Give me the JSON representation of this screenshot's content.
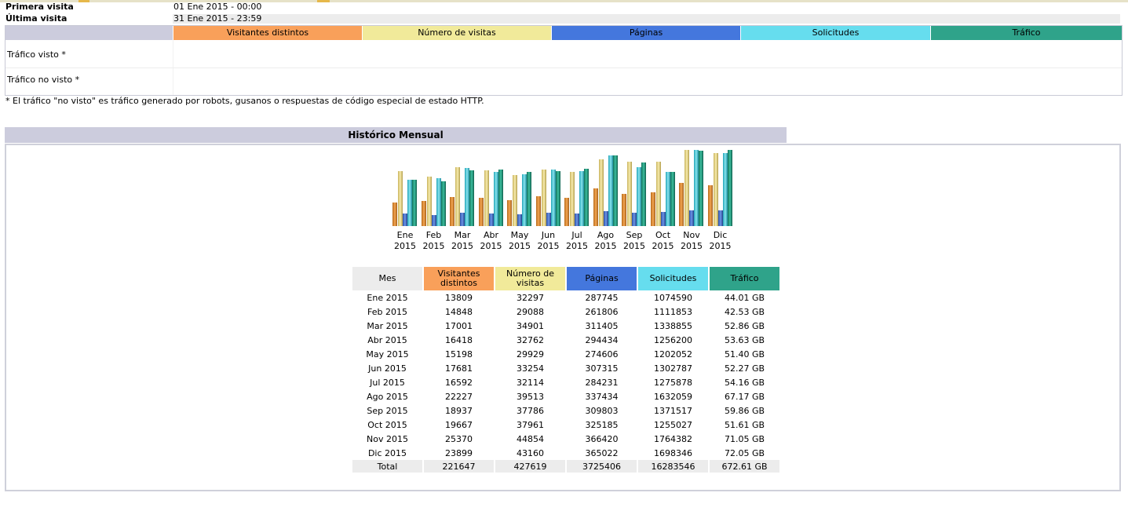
{
  "summary": {
    "first_visit_label": "Primera visita",
    "first_visit_value": "01 Ene 2015 - 00:00",
    "last_visit_label": "Última visita",
    "last_visit_value": "31 Ene 2015 - 23:59",
    "columns": [
      "Visitantes distintos",
      "Número de visitas",
      "Páginas",
      "Solicitudes",
      "Tráfico"
    ],
    "rows": [
      "Tráfico visto *",
      "Tráfico no visto *"
    ],
    "footnote": "* El tráfico \"no visto\" es tráfico generado por robots, gusanos o respuestas de código especial de estado HTTP."
  },
  "monthly": {
    "title": "Histórico Mensual",
    "headers": {
      "month": "Mes",
      "visitors": "Visitantes distintos",
      "visits": "Número de visitas",
      "pages": "Páginas",
      "hits": "Solicitudes",
      "traffic": "Tráfico"
    },
    "rows": [
      {
        "month": "Ene 2015",
        "visitors": "13809",
        "visits": "32297",
        "pages": "287745",
        "hits": "1074590",
        "traffic": "44.01 GB"
      },
      {
        "month": "Feb 2015",
        "visitors": "14848",
        "visits": "29088",
        "pages": "261806",
        "hits": "1111853",
        "traffic": "42.53 GB"
      },
      {
        "month": "Mar 2015",
        "visitors": "17001",
        "visits": "34901",
        "pages": "311405",
        "hits": "1338855",
        "traffic": "52.86 GB"
      },
      {
        "month": "Abr 2015",
        "visitors": "16418",
        "visits": "32762",
        "pages": "294434",
        "hits": "1256200",
        "traffic": "53.63 GB"
      },
      {
        "month": "May 2015",
        "visitors": "15198",
        "visits": "29929",
        "pages": "274606",
        "hits": "1202052",
        "traffic": "51.40 GB"
      },
      {
        "month": "Jun 2015",
        "visitors": "17681",
        "visits": "33254",
        "pages": "307315",
        "hits": "1302787",
        "traffic": "52.27 GB"
      },
      {
        "month": "Jul 2015",
        "visitors": "16592",
        "visits": "32114",
        "pages": "284231",
        "hits": "1275878",
        "traffic": "54.16 GB"
      },
      {
        "month": "Ago 2015",
        "visitors": "22227",
        "visits": "39513",
        "pages": "337434",
        "hits": "1632059",
        "traffic": "67.17 GB"
      },
      {
        "month": "Sep 2015",
        "visitors": "18937",
        "visits": "37786",
        "pages": "309803",
        "hits": "1371517",
        "traffic": "59.86 GB"
      },
      {
        "month": "Oct 2015",
        "visitors": "19667",
        "visits": "37961",
        "pages": "325185",
        "hits": "1255027",
        "traffic": "51.61 GB"
      },
      {
        "month": "Nov 2015",
        "visitors": "25370",
        "visits": "44854",
        "pages": "366420",
        "hits": "1764382",
        "traffic": "71.05 GB"
      },
      {
        "month": "Dic 2015",
        "visitors": "23899",
        "visits": "43160",
        "pages": "365022",
        "hits": "1698346",
        "traffic": "72.05 GB"
      }
    ],
    "total": {
      "month": "Total",
      "visitors": "221647",
      "visits": "427619",
      "pages": "3725406",
      "hits": "16283546",
      "traffic": "672.61 GB"
    }
  },
  "chart_data": {
    "type": "bar",
    "categories": [
      "Ene 2015",
      "Feb 2015",
      "Mar 2015",
      "Abr 2015",
      "May 2015",
      "Jun 2015",
      "Jul 2015",
      "Ago 2015",
      "Sep 2015",
      "Oct 2015",
      "Nov 2015",
      "Dic 2015"
    ],
    "category_lines": [
      [
        "Ene",
        "2015"
      ],
      [
        "Feb",
        "2015"
      ],
      [
        "Mar",
        "2015"
      ],
      [
        "Abr",
        "2015"
      ],
      [
        "May",
        "2015"
      ],
      [
        "Jun",
        "2015"
      ],
      [
        "Jul",
        "2015"
      ],
      [
        "Ago",
        "2015"
      ],
      [
        "Sep",
        "2015"
      ],
      [
        "Oct",
        "2015"
      ],
      [
        "Nov",
        "2015"
      ],
      [
        "Dic",
        "2015"
      ]
    ],
    "series": [
      {
        "name": "Visitantes distintos",
        "values": [
          13809,
          14848,
          17001,
          16418,
          15198,
          17681,
          16592,
          22227,
          18937,
          19667,
          25370,
          23899
        ]
      },
      {
        "name": "Número de visitas",
        "values": [
          32297,
          29088,
          34901,
          32762,
          29929,
          33254,
          32114,
          39513,
          37786,
          37961,
          44854,
          43160
        ]
      },
      {
        "name": "Páginas",
        "values": [
          287745,
          261806,
          311405,
          294434,
          274606,
          307315,
          284231,
          337434,
          309803,
          325185,
          366420,
          365022
        ]
      },
      {
        "name": "Solicitudes",
        "values": [
          1074590,
          1111853,
          1338855,
          1256200,
          1202052,
          1302787,
          1275878,
          1632059,
          1371517,
          1255027,
          1764382,
          1698346
        ]
      },
      {
        "name": "Tráfico",
        "values": [
          44.01,
          42.53,
          52.86,
          53.63,
          51.4,
          52.27,
          54.16,
          67.17,
          59.86,
          51.61,
          71.05,
          72.05
        ],
        "unit": "GB"
      }
    ],
    "colors": [
      "#f9a05a",
      "#f1ea9a",
      "#4477dd",
      "#66ddee",
      "#2fa38a"
    ],
    "title": "",
    "xlabel": "",
    "ylabel": ""
  }
}
